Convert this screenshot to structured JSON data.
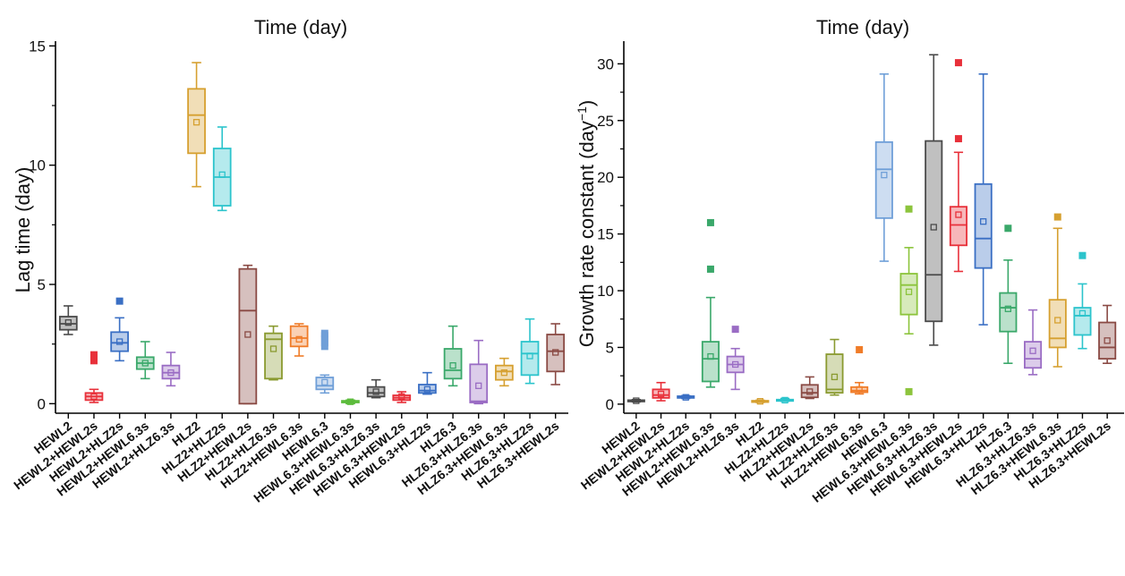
{
  "chart_data": [
    {
      "type": "box",
      "title": "Time (day)",
      "xlabel": "",
      "ylabel": "Lag time (day)",
      "ylim": [
        -0.4,
        15.2
      ],
      "yticks": [
        0,
        5,
        10,
        15
      ],
      "categories": [
        "HEWL2",
        "HEWL2+HEWL2s",
        "HEWL2+HLZ2s",
        "HEWL2+HEWL6.3s",
        "HEWL2+HLZ6.3s",
        "HLZ2",
        "HLZ2+HLZ2s",
        "HLZ2+HEWL2s",
        "HLZ2+HLZ6.3s",
        "HLZ2+HEWL6.3s",
        "HEWL6.3",
        "HEWL6.3+HEWL6.3s",
        "HEWL6.3+HLZ6.3s",
        "HEWL6.3+HEWL2s",
        "HEWL6.3+HLZ2s",
        "HLZ6.3",
        "HLZ6.3+HLZ6.3s",
        "HLZ6.3+HEWL6.3s",
        "HLZ6.3+HLZ2s",
        "HLZ6.3+HEWL2s"
      ],
      "bold_categories": [
        "HEWL2",
        "HLZ2",
        "HEWL6.3",
        "HLZ6.3"
      ],
      "colors": [
        "#4a4a4a",
        "#e8303a",
        "#3a6fc4",
        "#3aa86a",
        "#9a6cc4",
        "#d6a030",
        "#2cc4cc",
        "#8a4a44",
        "#8a9a30",
        "#f07c28",
        "#6f9fd8",
        "#5cbc3c",
        "#4a4a4a",
        "#e8303a",
        "#3a6fc4",
        "#3aa86a",
        "#9a6cc4",
        "#d6a030",
        "#2cc4cc",
        "#8a4a44"
      ],
      "boxes": [
        {
          "min": 2.9,
          "q1": 3.1,
          "median": 3.35,
          "q3": 3.65,
          "max": 4.1,
          "mean": 3.4,
          "outliers": []
        },
        {
          "min": 0.05,
          "q1": 0.15,
          "median": 0.3,
          "q3": 0.45,
          "max": 0.6,
          "mean": 0.3,
          "outliers": [
            1.8,
            1.95,
            2.05
          ]
        },
        {
          "min": 1.8,
          "q1": 2.2,
          "median": 2.55,
          "q3": 3.0,
          "max": 3.6,
          "mean": 2.6,
          "outliers": [
            4.3
          ]
        },
        {
          "min": 1.05,
          "q1": 1.45,
          "median": 1.7,
          "q3": 1.95,
          "max": 2.6,
          "mean": 1.7,
          "outliers": []
        },
        {
          "min": 0.75,
          "q1": 1.05,
          "median": 1.3,
          "q3": 1.6,
          "max": 2.15,
          "mean": 1.3,
          "outliers": []
        },
        {
          "min": 9.1,
          "q1": 10.5,
          "median": 12.1,
          "q3": 13.2,
          "max": 14.3,
          "mean": 11.8,
          "outliers": []
        },
        {
          "min": 8.1,
          "q1": 8.3,
          "median": 9.5,
          "q3": 10.7,
          "max": 11.6,
          "mean": 9.6,
          "outliers": []
        },
        {
          "min": 0.0,
          "q1": 0.0,
          "median": 3.9,
          "q3": 5.65,
          "max": 5.8,
          "mean": 2.9,
          "outliers": []
        },
        {
          "min": 1.0,
          "q1": 1.05,
          "median": 2.7,
          "q3": 2.95,
          "max": 3.25,
          "mean": 2.3,
          "outliers": []
        },
        {
          "min": 2.0,
          "q1": 2.4,
          "median": 2.75,
          "q3": 3.25,
          "max": 3.35,
          "mean": 2.7,
          "outliers": []
        },
        {
          "min": 0.45,
          "q1": 0.6,
          "median": 0.75,
          "q3": 1.1,
          "max": 1.2,
          "mean": 0.9,
          "outliers": [
            2.4,
            2.55,
            2.7,
            2.85,
            2.95
          ]
        },
        {
          "min": 0.0,
          "q1": 0.05,
          "median": 0.1,
          "q3": 0.12,
          "max": 0.15,
          "mean": 0.08,
          "outliers": []
        },
        {
          "min": 0.25,
          "q1": 0.3,
          "median": 0.45,
          "q3": 0.7,
          "max": 1.0,
          "mean": 0.5,
          "outliers": []
        },
        {
          "min": 0.05,
          "q1": 0.15,
          "median": 0.25,
          "q3": 0.35,
          "max": 0.5,
          "mean": 0.3,
          "outliers": []
        },
        {
          "min": 0.4,
          "q1": 0.45,
          "median": 0.55,
          "q3": 0.8,
          "max": 1.3,
          "mean": 0.6,
          "outliers": []
        },
        {
          "min": 0.75,
          "q1": 1.05,
          "median": 1.4,
          "q3": 2.3,
          "max": 3.25,
          "mean": 1.6,
          "outliers": []
        },
        {
          "min": 0.0,
          "q1": 0.05,
          "median": 0.1,
          "q3": 1.65,
          "max": 2.65,
          "mean": 0.75,
          "outliers": []
        },
        {
          "min": 0.75,
          "q1": 1.0,
          "median": 1.35,
          "q3": 1.6,
          "max": 1.9,
          "mean": 1.3,
          "outliers": []
        },
        {
          "min": 0.85,
          "q1": 1.2,
          "median": 2.1,
          "q3": 2.6,
          "max": 3.55,
          "mean": 2.0,
          "outliers": []
        },
        {
          "min": 0.8,
          "q1": 1.35,
          "median": 2.2,
          "q3": 2.9,
          "max": 3.35,
          "mean": 2.15,
          "outliers": []
        }
      ]
    },
    {
      "type": "box",
      "title": "Time (day)",
      "xlabel": "",
      "ylabel": "Growth rate constant (day",
      "ylabel_sup": "−1",
      "ylabel_end": ")",
      "ylim": [
        -0.8,
        32
      ],
      "yticks": [
        0,
        5,
        10,
        15,
        20,
        25,
        30
      ],
      "categories": [
        "HEWL2",
        "HEWL2+HEWL2s",
        "HEWL2+HLZ2s",
        "HEWL2+HEWL6.3s",
        "HEWL2+HLZ6.3s",
        "HLZ2",
        "HLZ2+HLZ2s",
        "HLZ2+HEWL2s",
        "HLZ2+HLZ6.3s",
        "HLZ2+HEWL6.3s",
        "HEWL6.3",
        "HEWL6.3+HEWL6.3s",
        "HEWL6.3+HLZ6.3s",
        "HEWL6.3+HEWL2s",
        "HEWL6.3+HLZ2s",
        "HLZ6.3",
        "HLZ6.3+HLZ6.3s",
        "HLZ6.3+HEWL6.3s",
        "HLZ6.3+HLZ2s",
        "HLZ6.3+HEWL2s"
      ],
      "bold_categories": [
        "HEWL2",
        "HLZ2",
        "HEWL6.3",
        "HLZ6.3"
      ],
      "colors": [
        "#4a4a4a",
        "#e8303a",
        "#3a6fc4",
        "#3aa86a",
        "#9a6cc4",
        "#d6a030",
        "#2cc4cc",
        "#8a4a44",
        "#8a9a30",
        "#f07c28",
        "#6f9fd8",
        "#8cc43c",
        "#4a4a4a",
        "#e8303a",
        "#3a6fc4",
        "#3aa86a",
        "#9a6cc4",
        "#d6a030",
        "#2cc4cc",
        "#8a4a44"
      ],
      "boxes": [
        {
          "min": 0.2,
          "q1": 0.25,
          "median": 0.3,
          "q3": 0.35,
          "max": 0.4,
          "mean": 0.3,
          "outliers": []
        },
        {
          "min": 0.3,
          "q1": 0.55,
          "median": 0.8,
          "q3": 1.3,
          "max": 1.9,
          "mean": 0.9,
          "outliers": []
        },
        {
          "min": 0.5,
          "q1": 0.55,
          "median": 0.6,
          "q3": 0.7,
          "max": 0.75,
          "mean": 0.6,
          "outliers": []
        },
        {
          "min": 1.5,
          "q1": 2.0,
          "median": 4.0,
          "q3": 5.5,
          "max": 9.4,
          "mean": 4.2,
          "outliers": [
            11.9,
            16.0
          ]
        },
        {
          "min": 1.3,
          "q1": 2.8,
          "median": 3.5,
          "q3": 4.2,
          "max": 4.9,
          "mean": 3.5,
          "outliers": [
            6.6
          ]
        },
        {
          "min": 0.15,
          "q1": 0.2,
          "median": 0.25,
          "q3": 0.3,
          "max": 0.35,
          "mean": 0.25,
          "outliers": []
        },
        {
          "min": 0.25,
          "q1": 0.3,
          "median": 0.35,
          "q3": 0.4,
          "max": 0.5,
          "mean": 0.35,
          "outliers": []
        },
        {
          "min": 0.5,
          "q1": 0.6,
          "median": 1.0,
          "q3": 1.7,
          "max": 2.4,
          "mean": 1.1,
          "outliers": []
        },
        {
          "min": 0.8,
          "q1": 1.0,
          "median": 1.3,
          "q3": 4.4,
          "max": 5.7,
          "mean": 2.4,
          "outliers": []
        },
        {
          "min": 0.9,
          "q1": 1.05,
          "median": 1.2,
          "q3": 1.5,
          "max": 1.9,
          "mean": 1.3,
          "outliers": [
            4.8
          ]
        },
        {
          "min": 12.6,
          "q1": 16.4,
          "median": 20.7,
          "q3": 23.1,
          "max": 29.1,
          "mean": 20.2,
          "outliers": []
        },
        {
          "min": 6.2,
          "q1": 7.9,
          "median": 10.5,
          "q3": 11.5,
          "max": 13.8,
          "mean": 9.9,
          "outliers": [
            1.1,
            17.2
          ]
        },
        {
          "min": 5.2,
          "q1": 7.3,
          "median": 11.4,
          "q3": 23.2,
          "max": 30.8,
          "mean": 15.6,
          "outliers": []
        },
        {
          "min": 11.7,
          "q1": 14.0,
          "median": 15.8,
          "q3": 17.4,
          "max": 22.2,
          "mean": 16.7,
          "outliers": [
            23.4,
            30.1
          ]
        },
        {
          "min": 7.0,
          "q1": 12.0,
          "median": 14.6,
          "q3": 19.4,
          "max": 29.1,
          "mean": 16.1,
          "outliers": []
        },
        {
          "min": 3.6,
          "q1": 6.4,
          "median": 8.5,
          "q3": 9.8,
          "max": 12.7,
          "mean": 8.4,
          "outliers": [
            15.5
          ]
        },
        {
          "min": 2.6,
          "q1": 3.2,
          "median": 4.0,
          "q3": 5.5,
          "max": 8.3,
          "mean": 4.7,
          "outliers": []
        },
        {
          "min": 3.3,
          "q1": 5.0,
          "median": 5.8,
          "q3": 9.2,
          "max": 15.5,
          "mean": 7.4,
          "outliers": [
            16.5
          ]
        },
        {
          "min": 4.9,
          "q1": 6.1,
          "median": 7.8,
          "q3": 8.5,
          "max": 10.6,
          "mean": 8.0,
          "outliers": [
            13.1
          ]
        },
        {
          "min": 3.6,
          "q1": 4.0,
          "median": 5.0,
          "q3": 7.2,
          "max": 8.7,
          "mean": 5.6,
          "outliers": []
        }
      ]
    }
  ]
}
